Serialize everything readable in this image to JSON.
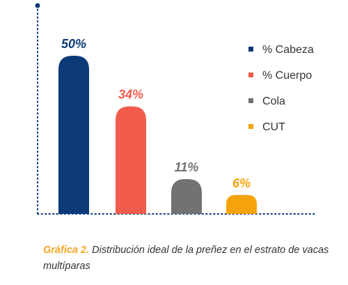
{
  "chart_data": {
    "type": "bar",
    "categories": [
      "% Cabeza",
      "% Cuerpo",
      "Cola",
      "CUT"
    ],
    "values": [
      50,
      34,
      11,
      6
    ],
    "data_labels": [
      "50%",
      "34%",
      "11%",
      "6%"
    ],
    "colors": [
      "#0c3a78",
      "#f25c4c",
      "#727272",
      "#f5a30a"
    ],
    "ylim": [
      0,
      50
    ],
    "grid": false,
    "legend": {
      "placement": "right",
      "entries": [
        "% Cabeza",
        "% Cuerpo",
        "Cola",
        "CUT"
      ]
    },
    "axis_color": "#0c3a78"
  },
  "caption": {
    "lead": "Gráfica 2.",
    "text": " Distribución ideal de la preñez en el estrato de vacas multíparas"
  }
}
